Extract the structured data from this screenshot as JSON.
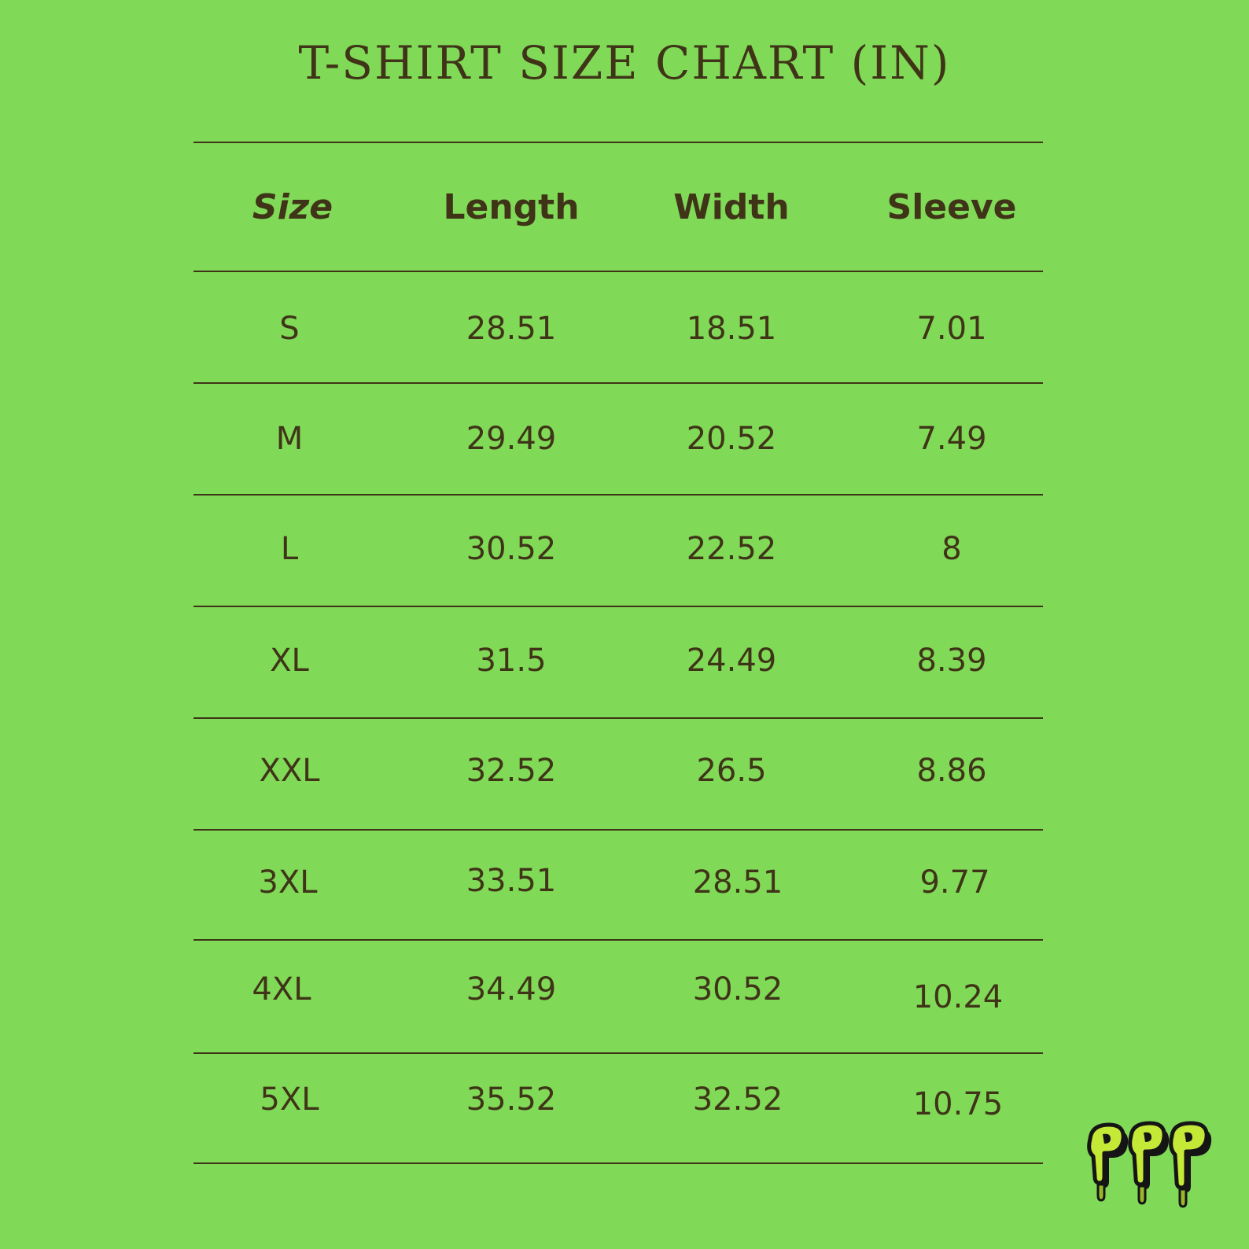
{
  "title": "T-SHIRT SIZE CHART (IN)",
  "colors": {
    "background": "#80d957",
    "text": "#3f3418",
    "logo_fill": "#c4ea37",
    "logo_outline": "#151515"
  },
  "table": {
    "headers": [
      "Size",
      "Length",
      "Width",
      "Sleeve"
    ],
    "rows": [
      [
        "S",
        "28.51",
        "18.51",
        "7.01"
      ],
      [
        "M",
        "29.49",
        "20.52",
        "7.49"
      ],
      [
        "L",
        "30.52",
        "22.52",
        "8"
      ],
      [
        "XL",
        "31.5",
        "24.49",
        "8.39"
      ],
      [
        "XXL",
        "32.52",
        "26.5",
        "8.86"
      ],
      [
        "3XL",
        "33.51",
        "28.51",
        "9.77"
      ],
      [
        "4XL",
        "34.49",
        "30.52",
        "10.24"
      ],
      [
        "5XL",
        "35.52",
        "32.52",
        "10.75"
      ]
    ]
  },
  "logo": {
    "text": "PPP",
    "icon": "graffiti-logo-icon"
  }
}
